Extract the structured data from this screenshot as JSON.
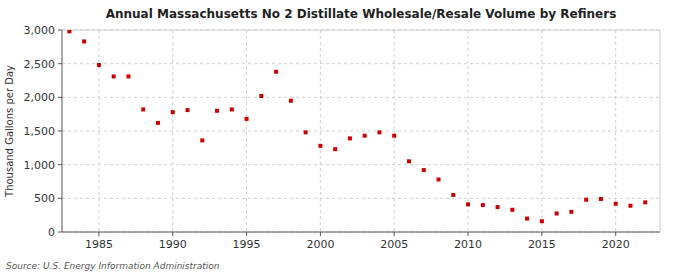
{
  "chart_data": {
    "type": "scatter",
    "title": "Annual Massachusetts No 2 Distillate Wholesale/Resale Volume by Refiners",
    "ylabel": "Thousand Gallons per Day",
    "annotations": [
      "Source: U.S. Energy Information Administration"
    ],
    "color": "#cc0000",
    "marker": "square",
    "grid": true,
    "x": [
      1983,
      1984,
      1985,
      1986,
      1987,
      1988,
      1989,
      1990,
      1991,
      1992,
      1993,
      1994,
      1995,
      1996,
      1997,
      1998,
      1999,
      2000,
      2001,
      2002,
      2003,
      2004,
      2005,
      2006,
      2007,
      2008,
      2009,
      2010,
      2011,
      2012,
      2013,
      2014,
      2015,
      2016,
      2017,
      2018,
      2019,
      2020,
      2021,
      2022
    ],
    "values": [
      2980,
      2830,
      2480,
      2310,
      2310,
      1820,
      1620,
      1780,
      1810,
      1360,
      1800,
      1820,
      1680,
      2020,
      2380,
      1950,
      1480,
      1280,
      1230,
      1390,
      1430,
      1480,
      1430,
      1050,
      920,
      780,
      550,
      410,
      400,
      370,
      330,
      200,
      160,
      275,
      300,
      480,
      490,
      420,
      390,
      440
    ],
    "xlim": [
      1982.5,
      2023
    ],
    "ylim": [
      0,
      3000
    ],
    "xticks": [
      1985,
      1990,
      1995,
      2000,
      2005,
      2010,
      2015,
      2020
    ],
    "yticks": [
      0,
      500,
      {
        "value": 1000,
        "label": "1,000"
      },
      {
        "value": 1500,
        "label": "1,500"
      },
      {
        "value": 2000,
        "label": "2,000"
      },
      {
        "value": 2500,
        "label": "2,500"
      },
      {
        "value": 3000,
        "label": "3,000"
      }
    ]
  }
}
